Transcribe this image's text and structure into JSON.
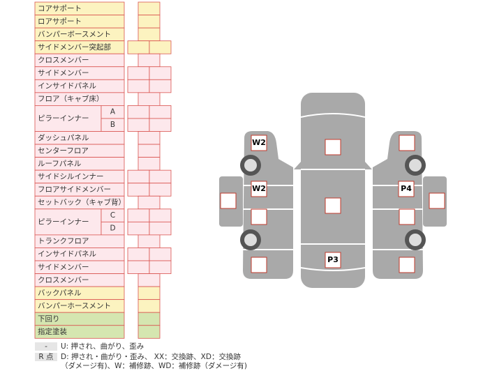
{
  "table": {
    "rows": [
      {
        "label": "コアサポート",
        "color": "#fcf3c0"
      },
      {
        "label": "ロアサポート",
        "color": "#fcf3c0"
      },
      {
        "label": "バンパーボースメント",
        "color": "#fcf3c0"
      },
      {
        "label": "サイドメンバー突起部",
        "color": "#fcf3c0"
      },
      {
        "label": "クロスメンバー",
        "color": "#fde8ec"
      },
      {
        "label": "サイドメンバー",
        "color": "#fde8ec"
      },
      {
        "label": "インサイドパネル",
        "color": "#fde8ec"
      },
      {
        "label": "フロア（キャブ床）",
        "color": "#fde8ec"
      },
      {
        "label": "ピラーインナー",
        "sub": [
          "A",
          "B"
        ],
        "color": "#fde8ec"
      },
      {
        "label": "ダッシュパネル",
        "color": "#fde8ec"
      },
      {
        "label": "センターフロア",
        "color": "#fde8ec"
      },
      {
        "label": "ルーフパネル",
        "color": "#fde8ec"
      },
      {
        "label": "サイドシルインナー",
        "color": "#fde8ec"
      },
      {
        "label": "フロアサイドメンバー",
        "color": "#fde8ec"
      },
      {
        "label": "セットバック（キャブ背）",
        "color": "#fde8ec"
      },
      {
        "label": "ピラーインナー",
        "sub": [
          "C",
          "D"
        ],
        "color": "#fde8ec"
      },
      {
        "label": "トランクフロア",
        "color": "#fde8ec"
      },
      {
        "label": "インサイドパネル",
        "color": "#fde8ec"
      },
      {
        "label": "サイドメンバー",
        "color": "#fde8ec"
      },
      {
        "label": "クロスメンバー",
        "color": "#fde8ec"
      },
      {
        "label": "バックパネル",
        "color": "#fcf3c0"
      },
      {
        "label": "バンパーホースメント",
        "color": "#fcf3c0"
      },
      {
        "label": "下回り",
        "color": "#d5e6b0"
      },
      {
        "label": "指定塗装",
        "color": "#d5e6b0"
      }
    ]
  },
  "legend": [
    {
      "key": "-",
      "lines": [
        "U: 押され、曲がり、歪み"
      ]
    },
    {
      "key": "R 点",
      "lines": [
        "D: 押され・曲がり・歪み、 XX：交換跡、XD：交換跡",
        "（ダメージ有)、W：補修跡、WD：補修跡（ダメージ有)"
      ]
    }
  ],
  "car": {
    "marks": [
      "W2",
      "W2",
      "P4",
      "P3"
    ]
  }
}
